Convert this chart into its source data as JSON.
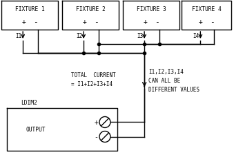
{
  "line_color": "#000000",
  "fixtures": [
    "FIXTURE 1",
    "FIXTURE 2",
    "FIXTURE 3",
    "FIXTURE 4"
  ],
  "current_labels": [
    "I1",
    "I2",
    "I3",
    "I4"
  ],
  "total_current_line1": "TOTAL  CURRENT",
  "total_current_line2": "= I1+I2+I3+I4",
  "note_lines": [
    "I1,I2,I3,I4",
    "CAN ALL BE",
    "DIFFERENT VALUES"
  ],
  "ldim_label": "LDIM2",
  "output_label": "OUTPUT",
  "font_size": 6.0
}
